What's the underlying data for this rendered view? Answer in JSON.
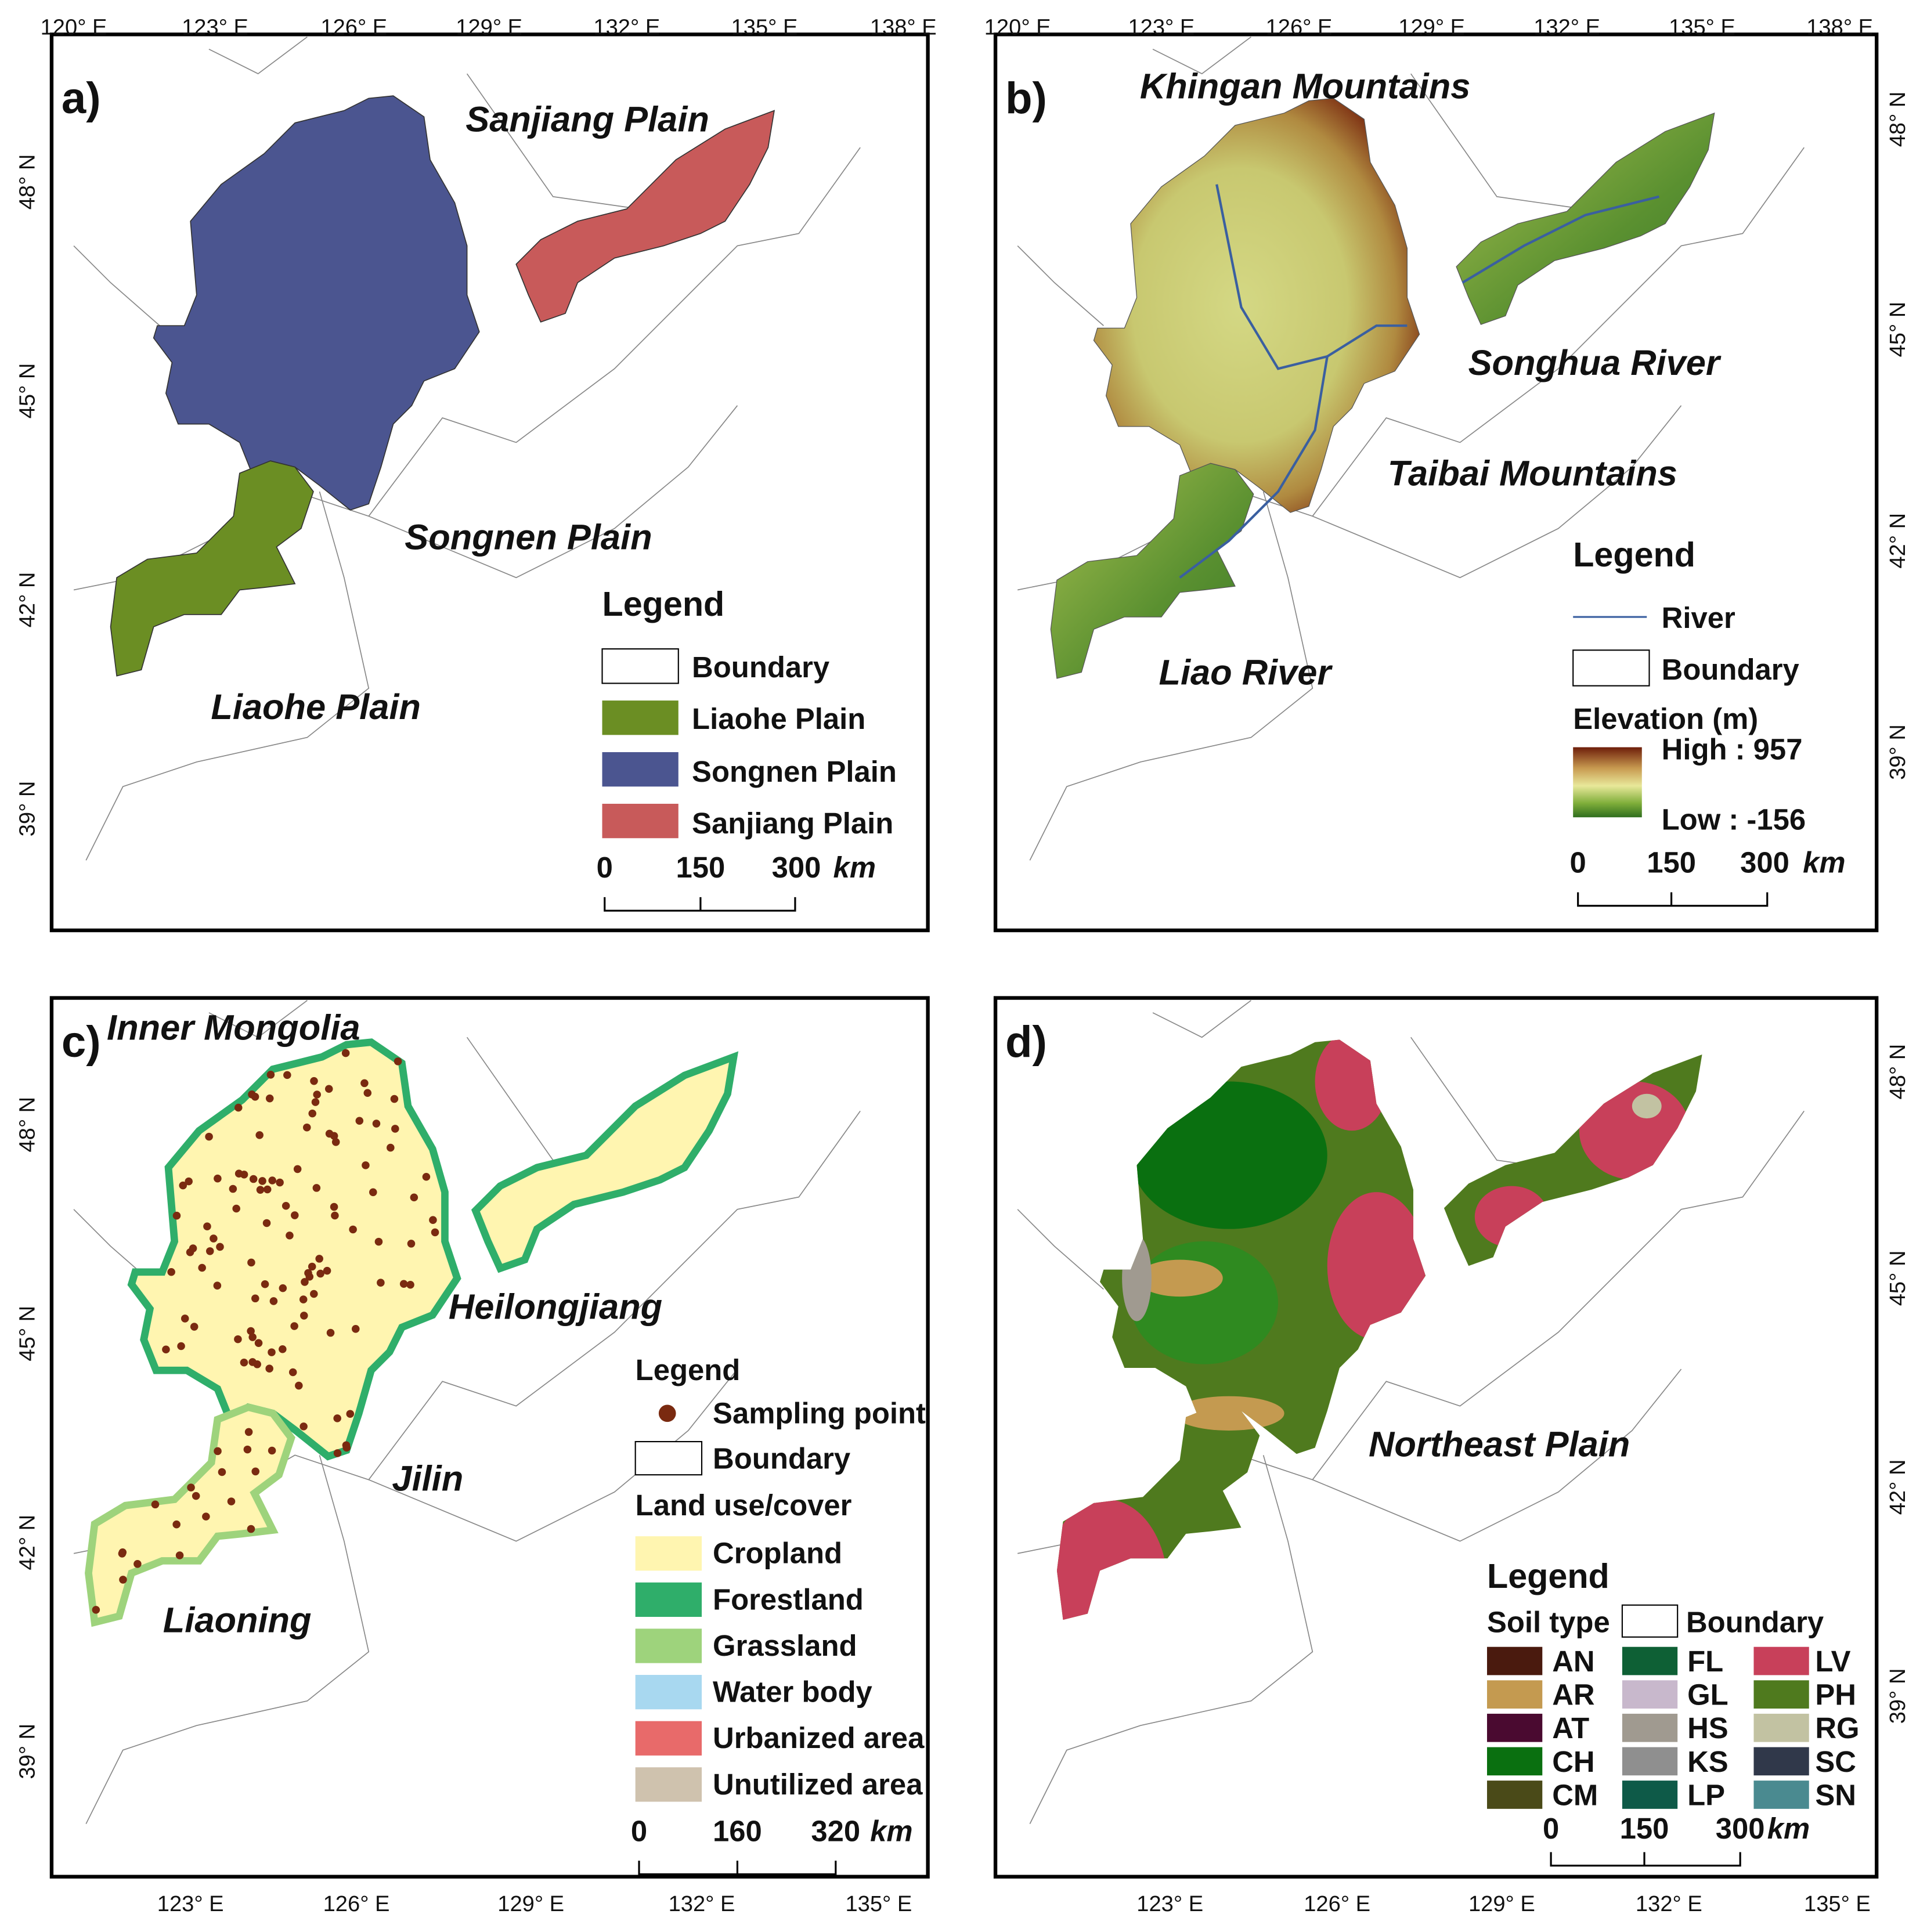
{
  "panels": [
    {
      "label": "a)",
      "top_ticks": [
        "120° E",
        "123° E",
        "126° E",
        "129° E",
        "132° E",
        "135° E",
        "138° E"
      ],
      "side_ticks": [
        "48° N",
        "45° N",
        "42° N",
        "39° N"
      ],
      "annotations": [
        "Sanjiang Plain",
        "Songnen Plain",
        "Liaohe Plain"
      ],
      "legend": {
        "title": "Legend",
        "items": [
          {
            "label": "Boundary",
            "color": "#ffffff"
          },
          {
            "label": "Liaohe Plain",
            "color": "#6b8e23"
          },
          {
            "label": "Songnen Plain",
            "color": "#4b5590"
          },
          {
            "label": "Sanjiang Plain",
            "color": "#c85a5a"
          }
        ]
      },
      "scale": [
        "0",
        "150",
        "300",
        "km"
      ]
    },
    {
      "label": "b)",
      "top_ticks": [
        "120° E",
        "123° E",
        "126° E",
        "129° E",
        "132° E",
        "135° E",
        "138° E"
      ],
      "side_ticks": [
        "48° N",
        "45° N",
        "42° N",
        "39° N"
      ],
      "annotations": [
        "Khingan Mountains",
        "Songhua River",
        "Taibai Mountains",
        "Liao River"
      ],
      "legend": {
        "title": "Legend",
        "items": [
          {
            "label": "River",
            "color": "#3a5fa0"
          },
          {
            "label": "Boundary",
            "color": "#ffffff"
          }
        ],
        "ramp_title": "Elevation (m)",
        "high": "High : 957",
        "low": "Low : -156"
      },
      "scale": [
        "0",
        "150",
        "300",
        "km"
      ]
    },
    {
      "label": "c)",
      "bottom_ticks": [
        "123° E",
        "126° E",
        "129° E",
        "132° E",
        "135° E"
      ],
      "side_ticks": [
        "48° N",
        "45° N",
        "42° N",
        "39° N"
      ],
      "annotations": [
        "Inner Mongolia",
        "Heilongjiang",
        "Jilin",
        "Liaoning"
      ],
      "legend": {
        "title": "Legend",
        "points": {
          "label": "Sampling point",
          "color": "#7a2a10"
        },
        "boundary": "Boundary",
        "subtitle": "Land use/cover",
        "items": [
          {
            "label": "Cropland",
            "color": "#fff5b0"
          },
          {
            "label": "Forestland",
            "color": "#2fae6a"
          },
          {
            "label": "Grassland",
            "color": "#9ed37c"
          },
          {
            "label": "Water body",
            "color": "#a8d8f0"
          },
          {
            "label": "Urbanized area",
            "color": "#e86a6a"
          },
          {
            "label": "Unutilized area",
            "color": "#cfc2ae"
          }
        ]
      },
      "scale": [
        "0",
        "160",
        "320",
        "km"
      ]
    },
    {
      "label": "d)",
      "bottom_ticks": [
        "123° E",
        "126° E",
        "129° E",
        "132° E",
        "135° E"
      ],
      "side_ticks": [
        "48° N",
        "45° N",
        "42° N",
        "39° N"
      ],
      "annotations": [
        "Northeast Plain"
      ],
      "legend": {
        "title": "Legend",
        "subtitle": "Soil type",
        "boundary": "Boundary",
        "items": [
          {
            "label": "AN",
            "color": "#4a1a0e"
          },
          {
            "label": "AR",
            "color": "#c49a50"
          },
          {
            "label": "AT",
            "color": "#4a0a30"
          },
          {
            "label": "CH",
            "color": "#0a7010"
          },
          {
            "label": "CM",
            "color": "#4a4a18"
          },
          {
            "label": "FL",
            "color": "#0e6035"
          },
          {
            "label": "GL",
            "color": "#c8b8cc"
          },
          {
            "label": "HS",
            "color": "#a09a90"
          },
          {
            "label": "KS",
            "color": "#8f8f8f"
          },
          {
            "label": "LP",
            "color": "#0e5a48"
          },
          {
            "label": "LV",
            "color": "#c8405a"
          },
          {
            "label": "PH",
            "color": "#4f7a1e"
          },
          {
            "label": "RG",
            "color": "#c2c2a2"
          },
          {
            "label": "SC",
            "color": "#30384a"
          },
          {
            "label": "SN",
            "color": "#4a8a90"
          }
        ]
      },
      "scale": [
        "0",
        "150",
        "300",
        "km"
      ]
    }
  ]
}
